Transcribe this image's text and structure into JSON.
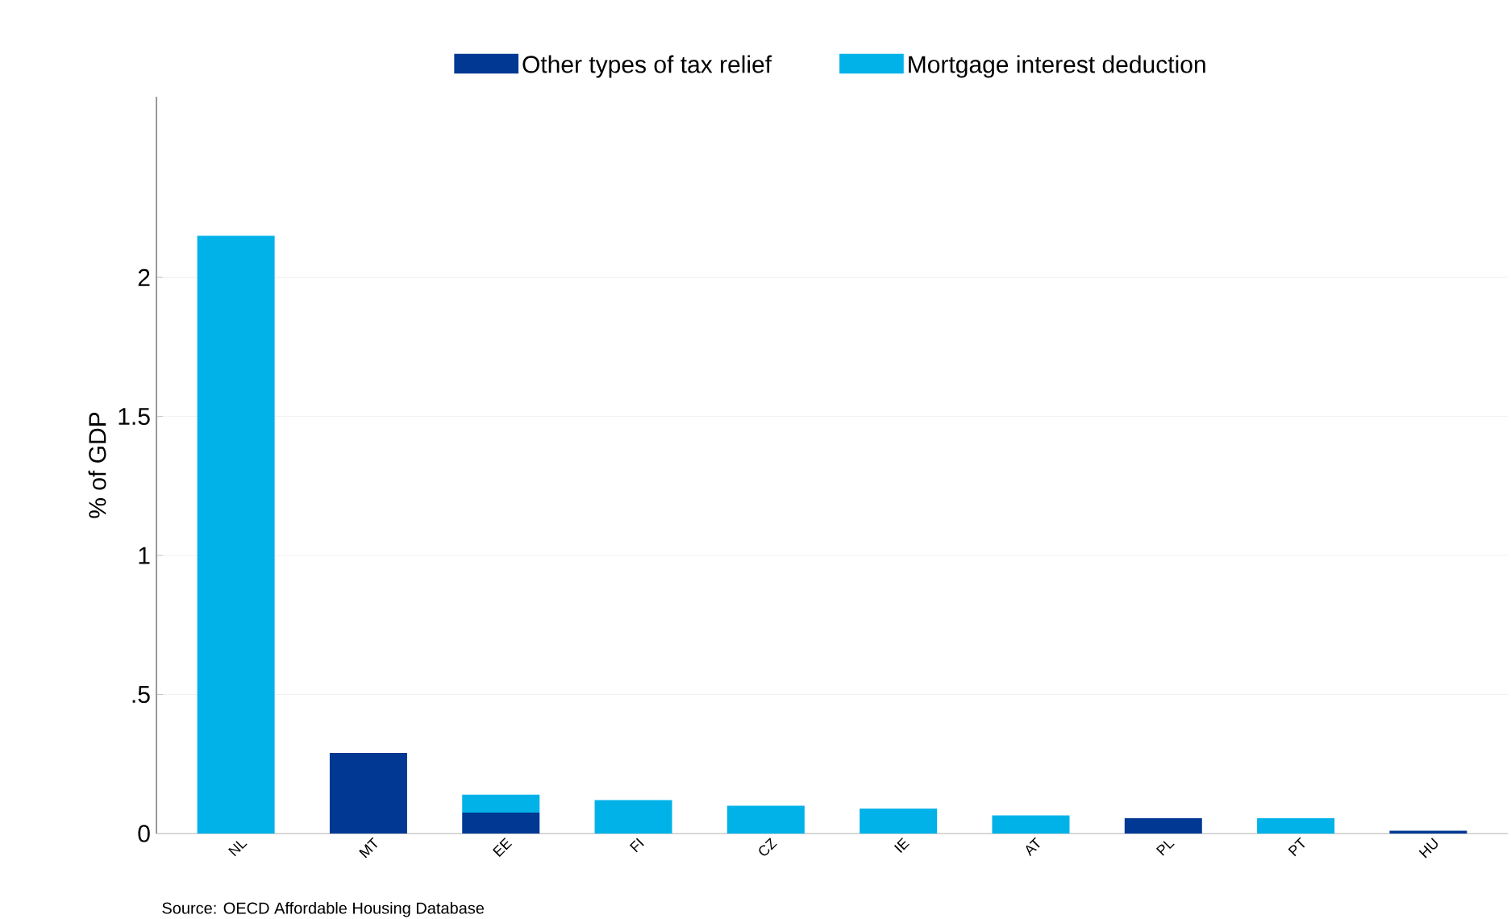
{
  "chart_data": {
    "type": "bar",
    "stacked": true,
    "ylabel": "% of GDP",
    "categories": [
      "NL",
      "MT",
      "EE",
      "FI",
      "CZ",
      "IE",
      "AT",
      "PL",
      "PT",
      "HU"
    ],
    "series": [
      {
        "name": "Other types of tax relief",
        "color": "#003893",
        "values": [
          0,
          0.29,
          0.075,
          0,
          0,
          0,
          0,
          0.055,
          0,
          0.01
        ]
      },
      {
        "name": "Mortgage interest deduction",
        "color": "#00b2e8",
        "values": [
          2.15,
          0,
          0.065,
          0.12,
          0.1,
          0.09,
          0.065,
          0,
          0.055,
          0
        ]
      }
    ],
    "ylim": [
      0,
      2.65
    ],
    "yticks": [
      0,
      {
        "value": 0.5,
        "label": ".5"
      },
      1,
      1.5,
      2
    ],
    "grid": "y",
    "legend": "top",
    "annotations": [
      "Source: OECD Affordable Housing Database"
    ]
  }
}
